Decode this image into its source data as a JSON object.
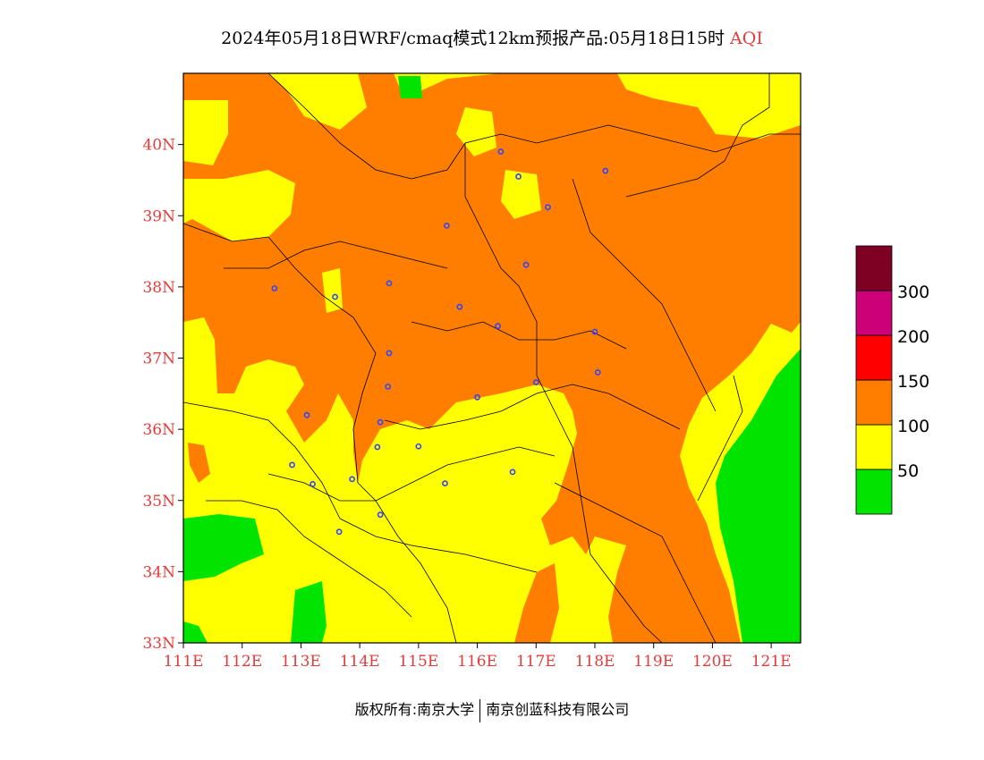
{
  "title": {
    "main": "2024年05月18日WRF/cmaq模式12km预报产品:05月18日15时",
    "variable": "AQI"
  },
  "map": {
    "lon_range": [
      111,
      121.5
    ],
    "lat_range": [
      33,
      41
    ],
    "lat_ticks": [
      {
        "value": 33,
        "label": "33N"
      },
      {
        "value": 34,
        "label": "34N"
      },
      {
        "value": 35,
        "label": "35N"
      },
      {
        "value": 36,
        "label": "36N"
      },
      {
        "value": 37,
        "label": "37N"
      },
      {
        "value": 38,
        "label": "38N"
      },
      {
        "value": 39,
        "label": "39N"
      },
      {
        "value": 40,
        "label": "40N"
      }
    ],
    "lon_ticks": [
      {
        "value": 111,
        "label": "111E"
      },
      {
        "value": 112,
        "label": "112E"
      },
      {
        "value": 113,
        "label": "113E"
      },
      {
        "value": 114,
        "label": "114E"
      },
      {
        "value": 115,
        "label": "115E"
      },
      {
        "value": 116,
        "label": "116E"
      },
      {
        "value": 117,
        "label": "117E"
      },
      {
        "value": 118,
        "label": "118E"
      },
      {
        "value": 119,
        "label": "119E"
      },
      {
        "value": 120,
        "label": "120E"
      },
      {
        "value": 121,
        "label": "121E"
      }
    ],
    "city_markers": [
      {
        "lon": 116.4,
        "lat": 39.9
      },
      {
        "lon": 116.7,
        "lat": 39.55
      },
      {
        "lon": 117.2,
        "lat": 39.12
      },
      {
        "lon": 118.18,
        "lat": 39.63
      },
      {
        "lon": 115.48,
        "lat": 38.86
      },
      {
        "lon": 116.83,
        "lat": 38.31
      },
      {
        "lon": 112.55,
        "lat": 37.98
      },
      {
        "lon": 113.58,
        "lat": 37.86
      },
      {
        "lon": 114.5,
        "lat": 38.05
      },
      {
        "lon": 115.7,
        "lat": 37.72
      },
      {
        "lon": 116.35,
        "lat": 37.45
      },
      {
        "lon": 118.0,
        "lat": 37.37
      },
      {
        "lon": 114.5,
        "lat": 37.07
      },
      {
        "lon": 114.48,
        "lat": 36.6
      },
      {
        "lon": 118.05,
        "lat": 36.8
      },
      {
        "lon": 117.0,
        "lat": 36.66
      },
      {
        "lon": 116.0,
        "lat": 36.45
      },
      {
        "lon": 113.1,
        "lat": 36.2
      },
      {
        "lon": 114.35,
        "lat": 36.1
      },
      {
        "lon": 114.3,
        "lat": 35.75
      },
      {
        "lon": 115.0,
        "lat": 35.76
      },
      {
        "lon": 112.85,
        "lat": 35.5
      },
      {
        "lon": 113.2,
        "lat": 35.23
      },
      {
        "lon": 113.87,
        "lat": 35.3
      },
      {
        "lon": 115.45,
        "lat": 35.24
      },
      {
        "lon": 116.6,
        "lat": 35.4
      },
      {
        "lon": 114.35,
        "lat": 34.8
      },
      {
        "lon": 113.65,
        "lat": 34.56
      }
    ]
  },
  "legend": {
    "colors": {
      "band_0_50": "#00e400",
      "band_50_100": "#ffff00",
      "band_100_150": "#ff7e00",
      "band_150_200": "#ff0000",
      "band_200_300": "#cc0077",
      "band_300_plus": "#7e0023"
    },
    "labels": [
      "50",
      "100",
      "150",
      "200",
      "300"
    ]
  },
  "footer": {
    "left": "版权所有:南京大学",
    "right": "南京创蓝科技有限公司"
  }
}
